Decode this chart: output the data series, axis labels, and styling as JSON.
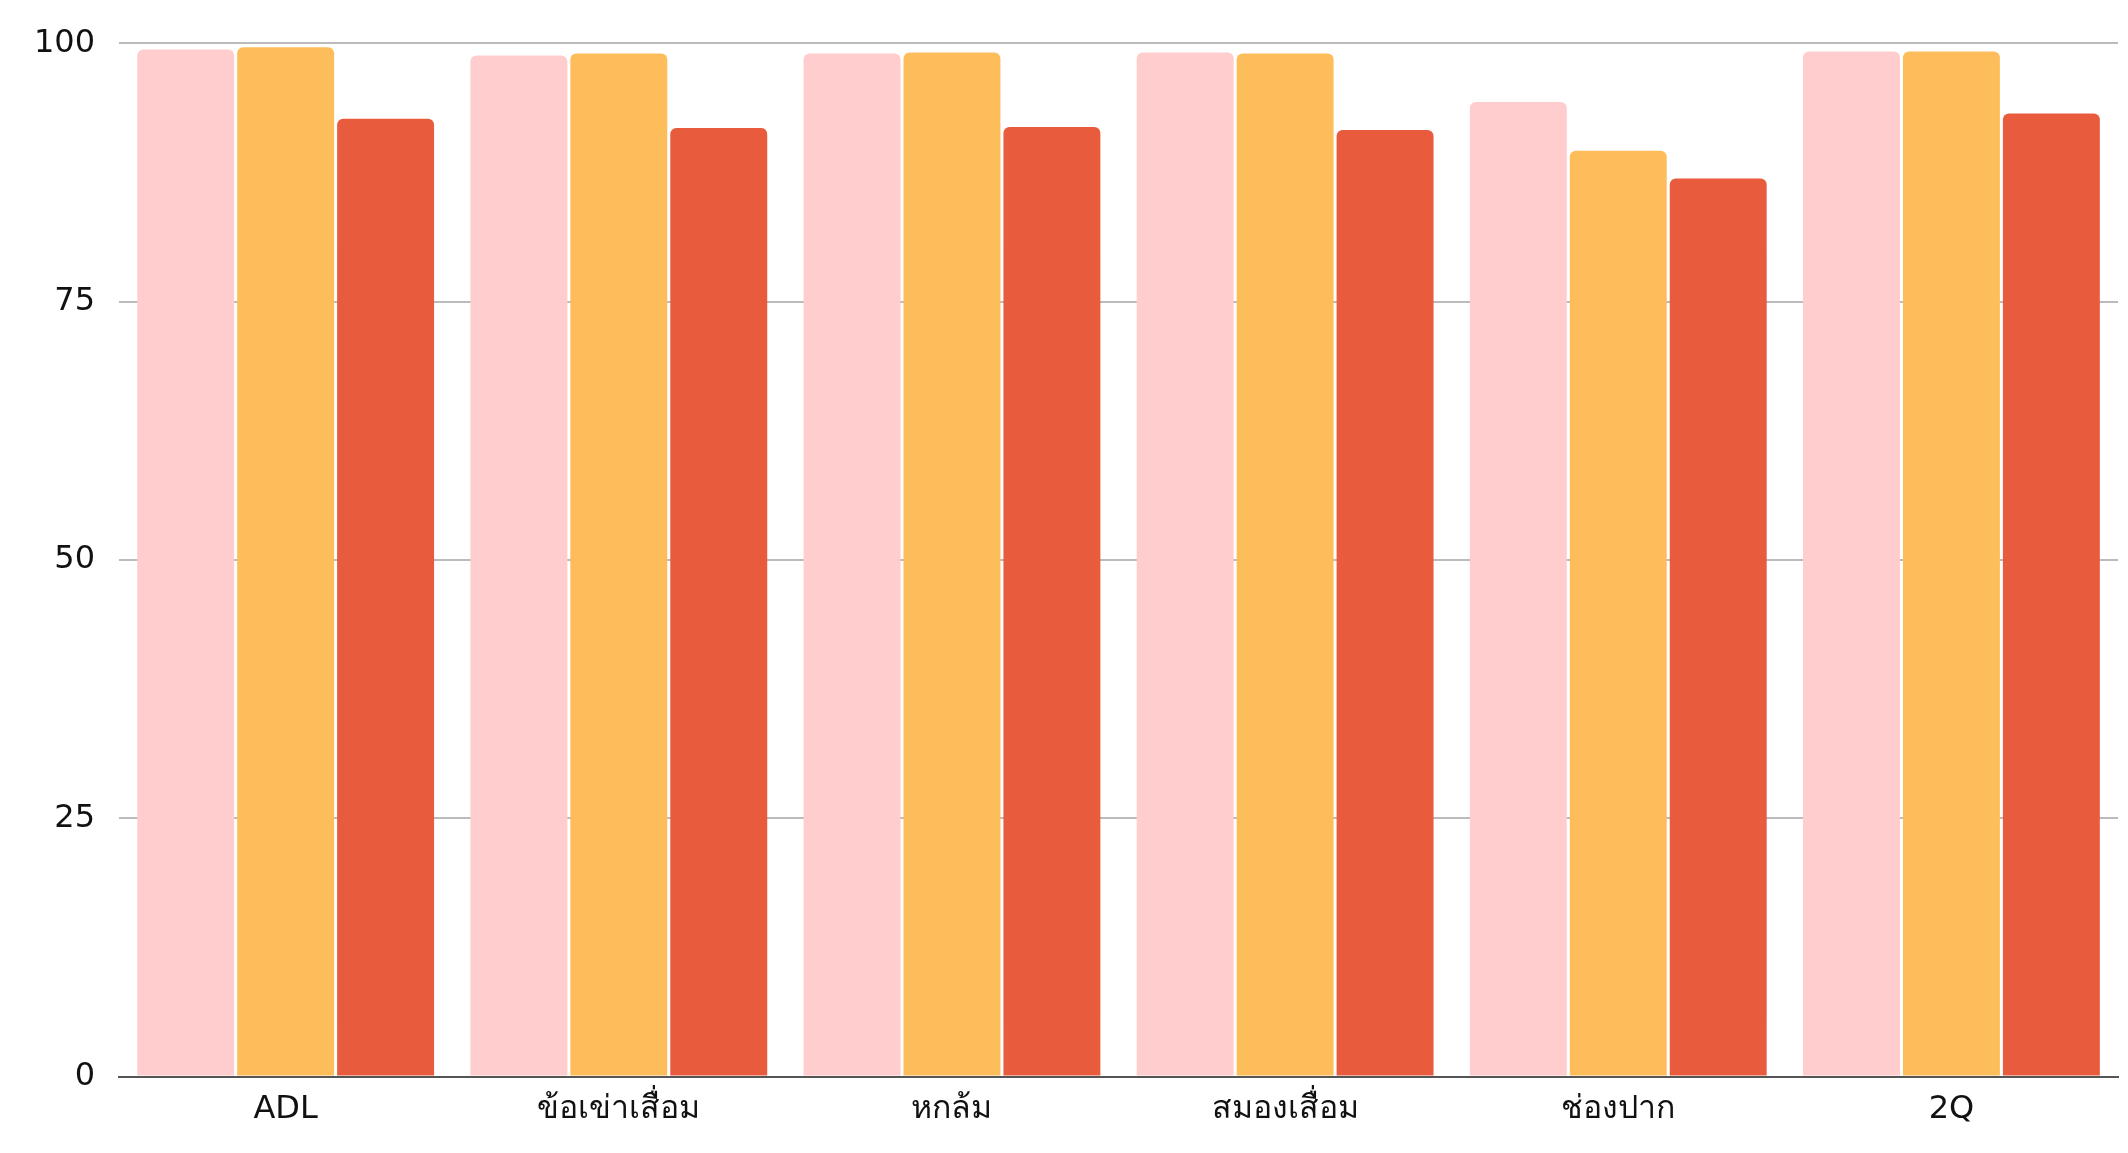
{
  "chart_data": {
    "type": "bar",
    "categories": [
      "ADL",
      "ข้อเข่าเสื่อม",
      "หกล้ม",
      "สมองเสื่อม",
      "ช่องปาก",
      "2Q"
    ],
    "series": [
      {
        "color": "#ffcdcd",
        "values": [
          99.4,
          98.8,
          99.0,
          99.1,
          94.3,
          99.2
        ]
      },
      {
        "color": "#febd5b",
        "values": [
          99.6,
          99.0,
          99.1,
          99.0,
          89.6,
          99.2
        ]
      },
      {
        "color": "#e95b3d",
        "values": [
          92.7,
          91.8,
          91.9,
          91.6,
          86.9,
          93.2
        ]
      }
    ],
    "ylim": [
      0,
      100
    ],
    "yticks": [
      0,
      25,
      50,
      75,
      100
    ],
    "grid": "y",
    "legend": false
  }
}
